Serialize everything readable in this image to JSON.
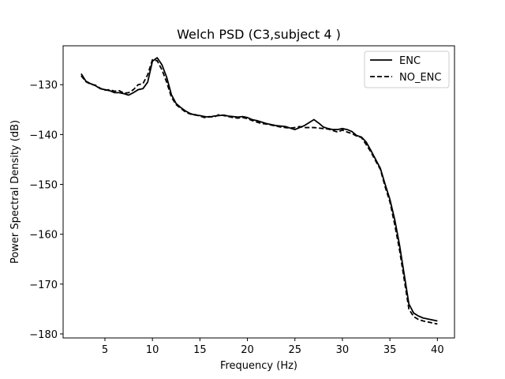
{
  "chart_data": {
    "type": "line",
    "title": "Welch PSD (C3,subject 4 )",
    "xlabel": "Frequency (Hz)",
    "ylabel": "Power Spectral Density (dB)",
    "xlim": [
      0.6,
      41.8
    ],
    "ylim": [
      -180.8,
      -122.2
    ],
    "xticks": [
      5,
      10,
      15,
      20,
      25,
      30,
      35,
      40
    ],
    "yticks": [
      -130,
      -140,
      -150,
      -160,
      -170,
      -180
    ],
    "grid": false,
    "legend_position": "top-right",
    "series": [
      {
        "name": "ENC",
        "style": "solid",
        "color": "#000000",
        "x": [
          2.5,
          3,
          3.5,
          4,
          4.5,
          5,
          5.5,
          6,
          6.5,
          7,
          7.5,
          8,
          8.5,
          9,
          9.5,
          10,
          10.5,
          11,
          11.5,
          12,
          12.5,
          13,
          13.5,
          14,
          14.5,
          15,
          15.5,
          16,
          16.5,
          17,
          17.5,
          18,
          18.5,
          19,
          19.5,
          20,
          20.5,
          21,
          21.5,
          22,
          22.5,
          23,
          23.5,
          24,
          24.5,
          25,
          25.5,
          26,
          26.5,
          27,
          27.5,
          28,
          28.5,
          29,
          29.5,
          30,
          30.5,
          31,
          31.5,
          32,
          32.5,
          33,
          33.5,
          34,
          34.5,
          35,
          35.5,
          36,
          36.5,
          37,
          37.5,
          38,
          38.5,
          39,
          39.5,
          40
        ],
        "values": [
          -127.8,
          -129.3,
          -129.8,
          -130.2,
          -130.8,
          -131.0,
          -131.2,
          -131.6,
          -131.6,
          -131.8,
          -132.1,
          -131.6,
          -131.0,
          -130.8,
          -129.5,
          -125.3,
          -124.6,
          -126.0,
          -128.5,
          -132.0,
          -133.8,
          -134.6,
          -135.3,
          -135.8,
          -136.1,
          -136.2,
          -136.4,
          -136.5,
          -136.3,
          -136.2,
          -136.1,
          -136.3,
          -136.4,
          -136.5,
          -136.4,
          -136.6,
          -137.0,
          -137.2,
          -137.5,
          -137.8,
          -138.0,
          -138.2,
          -138.3,
          -138.4,
          -138.7,
          -139.0,
          -138.6,
          -138.2,
          -137.6,
          -137.0,
          -137.7,
          -138.5,
          -138.8,
          -139.0,
          -139.0,
          -138.8,
          -139.0,
          -139.4,
          -140.2,
          -140.5,
          -141.5,
          -143.2,
          -145.0,
          -146.8,
          -150.0,
          -153.0,
          -157.0,
          -162.0,
          -168.0,
          -174.0,
          -175.8,
          -176.4,
          -176.8,
          -177.0,
          -177.2,
          -177.4
        ]
      },
      {
        "name": "NO_ENC",
        "style": "dashed",
        "color": "#000000",
        "x": [
          2.5,
          3,
          3.5,
          4,
          4.5,
          5,
          5.5,
          6,
          6.5,
          7,
          7.5,
          8,
          8.5,
          9,
          9.5,
          10,
          10.5,
          11,
          11.5,
          12,
          12.5,
          13,
          13.5,
          14,
          14.5,
          15,
          15.5,
          16,
          16.5,
          17,
          17.5,
          18,
          18.5,
          19,
          19.5,
          20,
          20.5,
          21,
          21.5,
          22,
          22.5,
          23,
          23.5,
          24,
          24.5,
          25,
          25.5,
          26,
          26.5,
          27,
          27.5,
          28,
          28.5,
          29,
          29.5,
          30,
          30.5,
          31,
          31.5,
          32,
          32.5,
          33,
          33.5,
          34,
          34.5,
          35,
          35.5,
          36,
          36.5,
          37,
          37.5,
          38,
          38.5,
          39,
          39.5,
          40
        ],
        "values": [
          -128.2,
          -129.4,
          -129.9,
          -130.1,
          -130.7,
          -131.1,
          -131.0,
          -131.3,
          -131.2,
          -131.7,
          -131.6,
          -131.0,
          -130.0,
          -129.8,
          -128.0,
          -125.0,
          -125.2,
          -127.0,
          -129.5,
          -132.5,
          -134.0,
          -134.8,
          -135.5,
          -135.9,
          -136.0,
          -136.3,
          -136.6,
          -136.4,
          -136.5,
          -136.0,
          -136.2,
          -136.4,
          -136.6,
          -136.7,
          -136.6,
          -136.8,
          -137.2,
          -137.5,
          -137.8,
          -137.9,
          -138.1,
          -138.3,
          -138.5,
          -138.6,
          -138.7,
          -138.6,
          -138.4,
          -138.6,
          -138.6,
          -138.6,
          -138.7,
          -138.8,
          -138.9,
          -139.2,
          -139.5,
          -139.1,
          -139.5,
          -139.8,
          -140.3,
          -140.6,
          -142.0,
          -143.5,
          -145.3,
          -147.0,
          -150.5,
          -153.5,
          -158.0,
          -163.0,
          -169.0,
          -175.0,
          -176.5,
          -177.1,
          -177.4,
          -177.6,
          -177.8,
          -178.0
        ]
      }
    ]
  }
}
